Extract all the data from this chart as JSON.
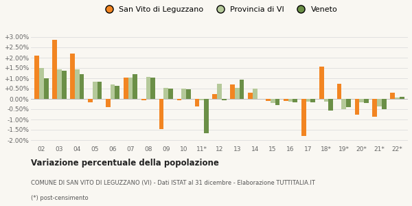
{
  "categories": [
    "02",
    "03",
    "04",
    "05",
    "06",
    "07",
    "08",
    "09",
    "10",
    "11*",
    "12",
    "13",
    "14",
    "15",
    "16",
    "17",
    "18*",
    "19*",
    "20*",
    "21*",
    "22*"
  ],
  "san_vito": [
    2.1,
    2.85,
    2.2,
    -0.15,
    -0.4,
    1.05,
    -0.05,
    -1.45,
    -0.05,
    -0.35,
    0.25,
    0.7,
    0.3,
    -0.1,
    -0.1,
    -1.8,
    1.55,
    0.72,
    -0.75,
    -0.85,
    0.3
  ],
  "provincia": [
    1.5,
    1.45,
    1.45,
    0.85,
    0.7,
    1.05,
    1.08,
    0.52,
    0.5,
    -0.05,
    0.75,
    0.55,
    0.5,
    -0.2,
    -0.12,
    -0.12,
    -0.12,
    -0.5,
    -0.15,
    -0.35,
    0.08
  ],
  "veneto": [
    1.0,
    1.35,
    1.2,
    0.82,
    0.65,
    1.2,
    1.05,
    0.5,
    0.48,
    -1.65,
    -0.05,
    0.92,
    0.0,
    -0.3,
    -0.17,
    -0.17,
    -0.55,
    -0.4,
    -0.2,
    -0.5,
    0.1
  ],
  "colors": {
    "san_vito": "#f28522",
    "provincia": "#b5c99a",
    "veneto": "#6b8f47"
  },
  "ylim": [
    -2.2,
    3.3
  ],
  "yticks": [
    -2.0,
    -1.5,
    -1.0,
    -0.5,
    0.0,
    0.5,
    1.0,
    1.5,
    2.0,
    2.5,
    3.0
  ],
  "title": "Variazione percentuale della popolazione",
  "subtitle": "COMUNE DI SAN VITO DI LEGUZZANO (VI) - Dati ISTAT al 31 dicembre - Elaborazione TUTTITALIA.IT",
  "footnote": "(*) post-censimento",
  "legend_labels": [
    "San Vito di Leguzzano",
    "Provincia di VI",
    "Veneto"
  ],
  "bg_color": "#f9f7f2",
  "grid_color": "#dddddd"
}
